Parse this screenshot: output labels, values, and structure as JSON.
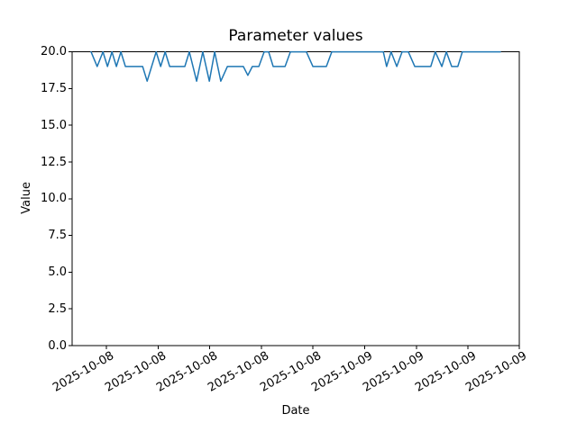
{
  "chart_data": {
    "type": "line",
    "title": "Parameter values",
    "xlabel": "Date",
    "ylabel": "Value",
    "ylim": [
      0.0,
      20.0
    ],
    "ytick_values": [
      0.0,
      2.5,
      5.0,
      7.5,
      10.0,
      12.5,
      15.0,
      17.5,
      20.0
    ],
    "ytick_labels": [
      "0.0",
      "2.5",
      "5.0",
      "7.5",
      "10.0",
      "12.5",
      "15.0",
      "17.5",
      "20.0"
    ],
    "xtick_labels": [
      "2025-10-08",
      "2025-10-08",
      "2025-10-08",
      "2025-10-08",
      "2025-10-08",
      "2025-10-09",
      "2025-10-09",
      "2025-10-09",
      "2025-10-09"
    ],
    "grid": false,
    "legend": false,
    "line_color": "#1f77b4",
    "axis_color": "#000000",
    "background_color": "#ffffff",
    "points_format": "[fraction_of_time_span, value]",
    "series": [
      {
        "name": "Parameter values",
        "points": [
          [
            0.0,
            20
          ],
          [
            0.015,
            19
          ],
          [
            0.029,
            20
          ],
          [
            0.04,
            19
          ],
          [
            0.051,
            20
          ],
          [
            0.062,
            19
          ],
          [
            0.073,
            20
          ],
          [
            0.084,
            19
          ],
          [
            0.126,
            19
          ],
          [
            0.137,
            18
          ],
          [
            0.148,
            19
          ],
          [
            0.159,
            20
          ],
          [
            0.17,
            19
          ],
          [
            0.181,
            20
          ],
          [
            0.192,
            19
          ],
          [
            0.229,
            19
          ],
          [
            0.24,
            20
          ],
          [
            0.258,
            18
          ],
          [
            0.273,
            20
          ],
          [
            0.289,
            18
          ],
          [
            0.302,
            20
          ],
          [
            0.317,
            18
          ],
          [
            0.333,
            19
          ],
          [
            0.372,
            19
          ],
          [
            0.383,
            18.4
          ],
          [
            0.394,
            19
          ],
          [
            0.41,
            19
          ],
          [
            0.423,
            20
          ],
          [
            0.434,
            20
          ],
          [
            0.445,
            19
          ],
          [
            0.474,
            19
          ],
          [
            0.487,
            20
          ],
          [
            0.526,
            20
          ],
          [
            0.542,
            19
          ],
          [
            0.575,
            19
          ],
          [
            0.588,
            20
          ],
          [
            0.714,
            20
          ],
          [
            0.722,
            19
          ],
          [
            0.733,
            20
          ],
          [
            0.747,
            19
          ],
          [
            0.76,
            20
          ],
          [
            0.775,
            20
          ],
          [
            0.791,
            19
          ],
          [
            0.83,
            19
          ],
          [
            0.841,
            20
          ],
          [
            0.857,
            19
          ],
          [
            0.868,
            20
          ],
          [
            0.881,
            19
          ],
          [
            0.896,
            19
          ],
          [
            0.907,
            20
          ],
          [
            1.0,
            20
          ]
        ]
      }
    ]
  }
}
